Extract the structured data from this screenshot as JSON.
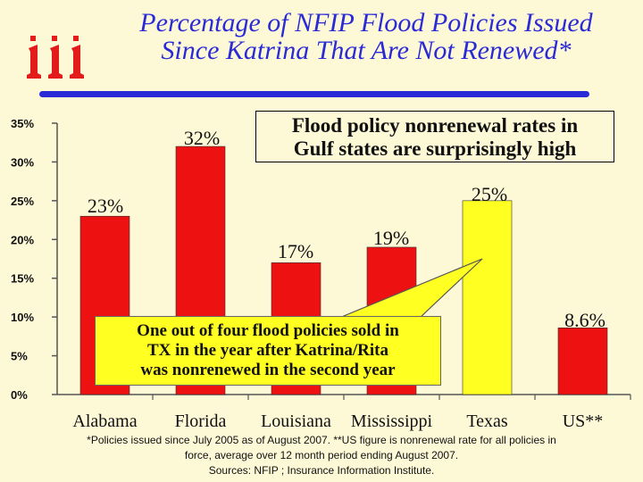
{
  "title": {
    "line1": "Percentage of NFIP Flood Policies Issued",
    "line2": "Since Katrina That Are Not Renewed*"
  },
  "colors": {
    "title": "#2a2ad6",
    "bar_default": "#ee1111",
    "bar_highlight": "#ffff22",
    "background": "#fdf8d6"
  },
  "chart_data": {
    "type": "bar",
    "categories": [
      "Alabama",
      "Florida",
      "Louisiana",
      "Mississippi",
      "Texas",
      "US**"
    ],
    "values": [
      23,
      32,
      17,
      19,
      25,
      8.6
    ],
    "data_labels": [
      "23%",
      "32%",
      "17%",
      "19%",
      "25%",
      "8.6%"
    ],
    "highlight_index": 4,
    "y_ticks": [
      "35%",
      "30%",
      "25%",
      "20%",
      "15%",
      "10%",
      "5%",
      "0%"
    ],
    "y_tick_values": [
      35,
      30,
      25,
      20,
      15,
      10,
      5,
      0
    ],
    "ylim": [
      0,
      35
    ],
    "grid": false,
    "title": "Percentage of NFIP Flood Policies Issued Since Katrina That Are Not Renewed*"
  },
  "callouts": {
    "top": {
      "line1": "Flood policy nonrenewal rates in",
      "line2": "Gulf states are surprisingly high"
    },
    "bottom": {
      "line1": "One out of four flood policies sold in",
      "line2": "TX in the year after Katrina/Rita",
      "line3": "was nonrenewed in the second year"
    }
  },
  "footnote": {
    "line1": "*Policies issued since July 2005 as of August 2007.   **US figure is nonrenewal rate for all policies in",
    "line2": "force, average over 12 month period ending August 2007.",
    "line3": "Sources: NFIP ; Insurance Information Institute."
  }
}
